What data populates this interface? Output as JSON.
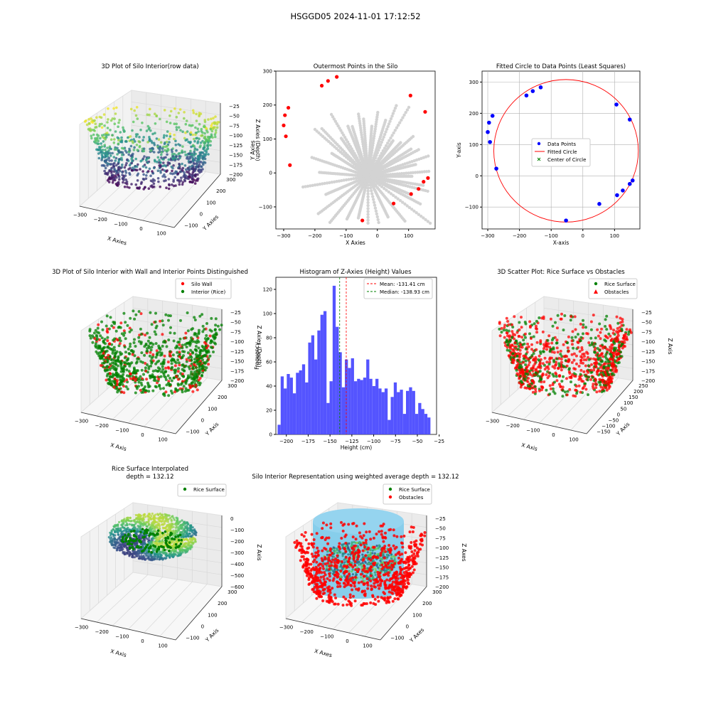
{
  "figure": {
    "suptitle": "HSGGD05 2024-11-01 17:12:52"
  },
  "panels": {
    "p1": {
      "title": "3D Plot of Silo Interior(row data)",
      "xlabel": "X Axies",
      "ylabel": "Y Axies",
      "zlabel": "Z Axies (Depth)",
      "xticks": [
        "−300",
        "−200",
        "−100",
        "0",
        "100"
      ],
      "yticks": [
        "−100",
        "0",
        "100",
        "200",
        "300"
      ],
      "zticks": [
        "−25",
        "−50",
        "−75",
        "−100",
        "−125",
        "−150",
        "−175",
        "−200"
      ]
    },
    "p2": {
      "title": "Outermost Points in the Silo",
      "xlabel": "X Axies",
      "ylabel": "Y Axies",
      "xticks": [
        "−300",
        "−200",
        "−100",
        "0",
        "100"
      ],
      "yticks": [
        "−100",
        "0",
        "100",
        "200",
        "300"
      ]
    },
    "p3": {
      "title": "Fitted Circle to Data Points (Least Squares)",
      "xlabel": "X-axis",
      "ylabel": "Y-axis",
      "xticks": [
        "−300",
        "−200",
        "−100",
        "0",
        "100"
      ],
      "yticks": [
        "−100",
        "0",
        "100",
        "200",
        "300"
      ],
      "legend": [
        "Data Points",
        "Fitted Circle",
        "Center of Circle"
      ]
    },
    "p4": {
      "title": "3D Plot of Silo Interior with Wall and Interior Points Distinguished",
      "xlabel": "X Axis",
      "ylabel": "Y Axis",
      "zlabel": "Z Axies (Depth)",
      "xticks": [
        "−300",
        "−200",
        "−100",
        "0",
        "100"
      ],
      "yticks": [
        "−100",
        "0",
        "100",
        "200",
        "300"
      ],
      "zticks": [
        "−25",
        "−50",
        "−75",
        "−100",
        "−125",
        "−150",
        "−175",
        "−200"
      ],
      "legend": [
        "Silo Wall",
        "Interior (Rice)"
      ]
    },
    "p5": {
      "title": "Histogram of Z-Axies (Height) Values",
      "xlabel": "Height (cm)",
      "ylabel": "Frequency",
      "xticks": [
        "−200",
        "−175",
        "−150",
        "−125",
        "−100",
        "−75",
        "−50",
        "−25"
      ],
      "yticks": [
        "0",
        "20",
        "40",
        "60",
        "80",
        "100",
        "120"
      ],
      "legend": [
        "Mean: -131.41 cm",
        "Median: -138.93 cm"
      ]
    },
    "p6": {
      "title": "3D Scatter Plot: Rice Surface vs Obstacles",
      "xlabel": "X Axis",
      "ylabel": "Y Axis",
      "zlabel": "Z Axis",
      "xticks": [
        "−300",
        "−200",
        "−100",
        "0",
        "100"
      ],
      "yticks": [
        "−150",
        "−100",
        "−50",
        "0",
        "50",
        "100",
        "150",
        "200",
        "250"
      ],
      "zticks": [
        "−25",
        "−50",
        "−75",
        "−100",
        "−125",
        "−150",
        "−175",
        "−200"
      ],
      "legend": [
        "Rice Surface",
        "Obstacles"
      ]
    },
    "p7": {
      "title": "Rice Surface Interpolated\ndepth = 132.12",
      "xlabel": "X Axis",
      "ylabel": "Y Axis",
      "zlabel": "Z Axis",
      "xticks": [
        "−300",
        "−200",
        "−100",
        "0",
        "100"
      ],
      "yticks": [
        "−100",
        "0",
        "100",
        "200",
        "300"
      ],
      "zticks": [
        "0",
        "−100",
        "−200",
        "−300",
        "−400",
        "−500",
        "−600"
      ],
      "legend": [
        "Rice Surface"
      ]
    },
    "p8": {
      "title": "Silo Interior Representation using weighted average depth = 132.12",
      "xlabel": "X Axes",
      "ylabel": "Y Axes",
      "zlabel": "Z Axes",
      "xticks": [
        "−300",
        "−200",
        "−100",
        "0",
        "100"
      ],
      "yticks": [
        "−100",
        "0",
        "100",
        "200",
        "300"
      ],
      "zticks": [
        "−25",
        "−50",
        "−75",
        "−100",
        "−125",
        "−150",
        "−175",
        "−200"
      ],
      "legend": [
        "Rice Surface",
        "Obstacles"
      ]
    }
  },
  "colors": {
    "wall": "#ff0000",
    "rice": "#008000",
    "points_gray": "#d3d3d3",
    "fit_blue": "#0000ff",
    "hist": "#4b4bff",
    "cylinder": "#87ceeb",
    "axis_pane": "#f2f2f2",
    "grid": "#d8d8d8"
  },
  "chart_data": [
    {
      "type": "scatter",
      "title": "Outermost Points in the Silo",
      "xlabel": "X Axies",
      "ylabel": "Y Axies",
      "xlim": [
        -325,
        185
      ],
      "ylim": [
        -165,
        300
      ],
      "series": [
        {
          "values": [
            [
              -300,
              140
            ],
            [
              -296,
              170
            ],
            [
              -293,
              108
            ],
            [
              -285,
              192
            ],
            [
              -280,
              23
            ],
            [
              -178,
              257
            ],
            [
              -158,
              271
            ],
            [
              -130,
              283
            ],
            [
              -48,
              -140
            ],
            [
              52,
              -90
            ],
            [
              106,
              228
            ],
            [
              108,
              -62
            ],
            [
              132,
              -47
            ],
            [
              148,
              -26
            ],
            [
              153,
              180
            ],
            [
              162,
              -15
            ]
          ]
        }
      ]
    },
    {
      "type": "scatter",
      "title": "Fitted Circle to Data Points (Least Squares)",
      "xlabel": "X-axis",
      "ylabel": "Y-axis",
      "xlim": [
        -318,
        180
      ],
      "ylim": [
        -170,
        335
      ],
      "series": [
        {
          "name": "Data Points",
          "values": [
            [
              -300,
              140
            ],
            [
              -296,
              170
            ],
            [
              -293,
              108
            ],
            [
              -285,
              192
            ],
            [
              -273,
              23
            ],
            [
              -178,
              257
            ],
            [
              -158,
              271
            ],
            [
              -133,
              283
            ],
            [
              -53,
              -143
            ],
            [
              52,
              -90
            ],
            [
              106,
              228
            ],
            [
              108,
              -62
            ],
            [
              126,
              -47
            ],
            [
              148,
              -26
            ],
            [
              148,
              180
            ],
            [
              157,
              -15
            ]
          ]
        },
        {
          "name": "Fitted Circle",
          "center": [
            -53,
            80
          ],
          "radius": 228
        },
        {
          "name": "Center of Circle",
          "values": [
            [
              -53,
              80
            ]
          ]
        }
      ]
    },
    {
      "type": "bar",
      "title": "Histogram of Z-Axies (Height) Values",
      "xlabel": "Height (cm)",
      "ylabel": "Frequency",
      "bin_start": -210,
      "bin_width": 3.5,
      "values": [
        8,
        48,
        38,
        50,
        47,
        34,
        51,
        53,
        58,
        43,
        76,
        82,
        62,
        86,
        99,
        102,
        26,
        44,
        123,
        89,
        68,
        39,
        62,
        55,
        63,
        44,
        46,
        45,
        47,
        62,
        46,
        40,
        46,
        38,
        35,
        38,
        12,
        31,
        43,
        35,
        37,
        17,
        36,
        39,
        36,
        17,
        26,
        21,
        17,
        14
      ],
      "xlim": [
        -212,
        -28
      ],
      "ylim": [
        0,
        130
      ],
      "mean": -131.41,
      "median": -138.93
    }
  ]
}
